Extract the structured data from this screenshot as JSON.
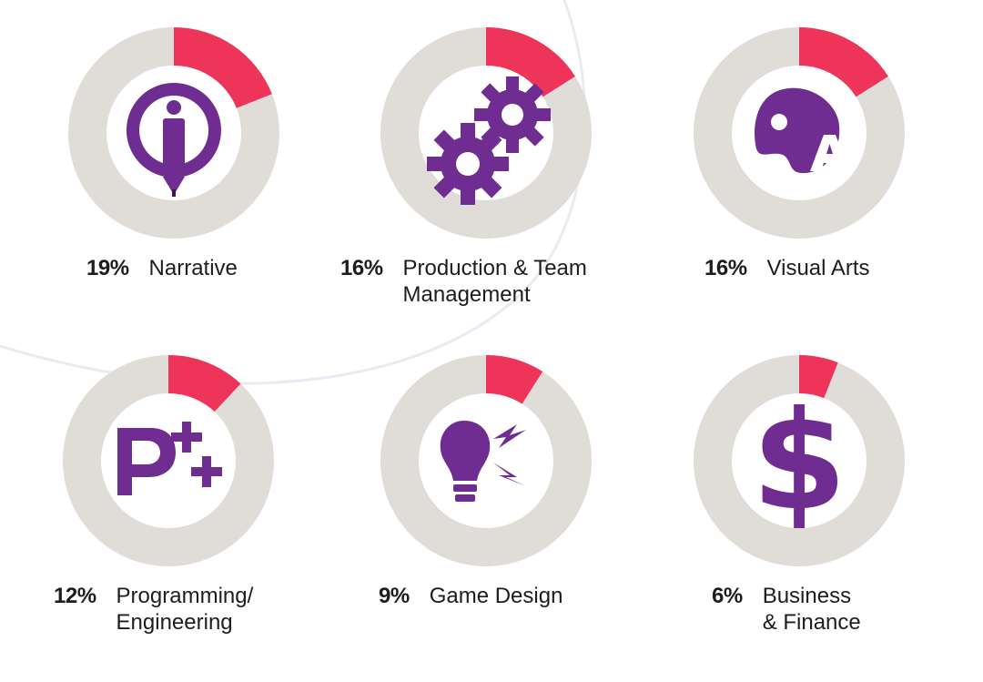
{
  "chart_data": {
    "type": "pie",
    "style": "donut",
    "colors": {
      "share": "#ee3559",
      "remainder": "#e0ddd9",
      "icon": "#6f2c91"
    },
    "slices": [
      {
        "value": 19,
        "percent_label": "19%",
        "label_lines": [
          "Narrative"
        ],
        "icon": "pencil-circle-icon"
      },
      {
        "value": 16,
        "percent_label": "16%",
        "label_lines": [
          "Production & Team",
          "Management"
        ],
        "icon": "gears-icon"
      },
      {
        "value": 16,
        "percent_label": "16%",
        "label_lines": [
          "Visual Arts"
        ],
        "icon": "palette-icon"
      },
      {
        "value": 12,
        "percent_label": "12%",
        "label_lines": [
          "Programming/",
          "Engineering"
        ],
        "icon": "code-plus-plus-icon"
      },
      {
        "value": 9,
        "percent_label": "9%",
        "label_lines": [
          "Game Design"
        ],
        "icon": "lightbulb-icon"
      },
      {
        "value": 6,
        "percent_label": "6%",
        "label_lines": [
          "Business",
          "& Finance"
        ],
        "icon": "dollar-icon"
      }
    ]
  }
}
